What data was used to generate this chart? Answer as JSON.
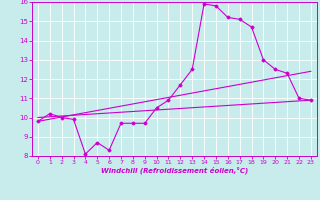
{
  "xlabel": "Windchill (Refroidissement éolien,°C)",
  "background_color": "#c8ecec",
  "line_color": "#cc00cc",
  "xlim": [
    -0.5,
    23.5
  ],
  "ylim": [
    8,
    16
  ],
  "xticks": [
    0,
    1,
    2,
    3,
    4,
    5,
    6,
    7,
    8,
    9,
    10,
    11,
    12,
    13,
    14,
    15,
    16,
    17,
    18,
    19,
    20,
    21,
    22,
    23
  ],
  "yticks": [
    8,
    9,
    10,
    11,
    12,
    13,
    14,
    15,
    16
  ],
  "curve1_x": [
    0,
    1,
    2,
    3,
    4,
    5,
    6,
    7,
    8,
    9,
    10,
    11,
    12,
    13,
    14,
    15,
    16,
    17,
    18,
    19,
    20,
    21,
    22,
    23
  ],
  "curve1_y": [
    9.8,
    10.2,
    10.0,
    9.9,
    8.1,
    8.7,
    8.3,
    9.7,
    9.7,
    9.7,
    10.5,
    10.9,
    11.7,
    12.5,
    15.9,
    15.8,
    15.2,
    15.1,
    14.7,
    13.0,
    12.5,
    12.3,
    11.0,
    10.9
  ],
  "line2_x": [
    0,
    23
  ],
  "line2_y": [
    9.8,
    12.4
  ],
  "line3_x": [
    0,
    23
  ],
  "line3_y": [
    10.0,
    10.9
  ],
  "figsize": [
    3.2,
    2.0
  ],
  "dpi": 100
}
